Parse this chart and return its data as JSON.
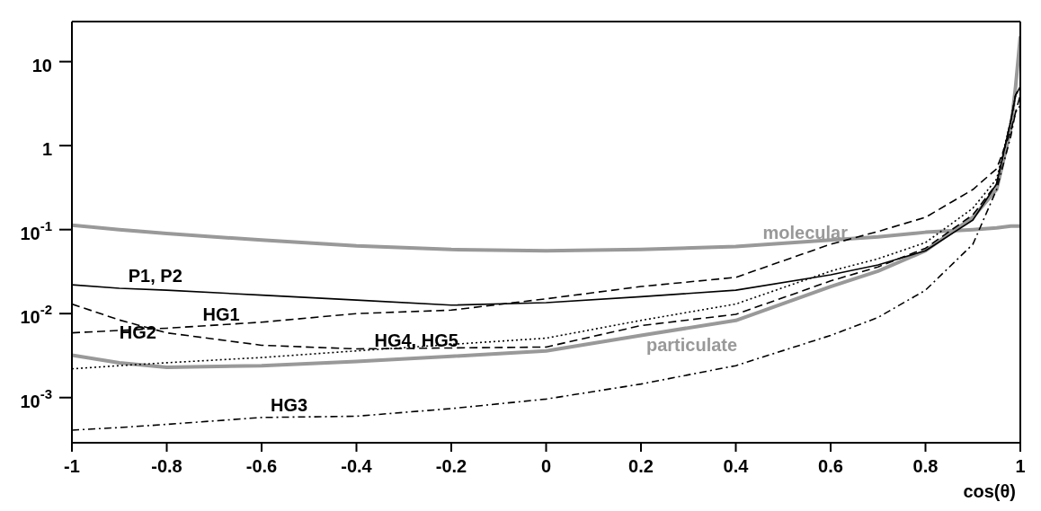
{
  "chart_data": {
    "type": "line",
    "xlabel": "cos(θ)",
    "x": [
      -1,
      -0.9,
      -0.8,
      -0.6,
      -0.4,
      -0.2,
      0,
      0.2,
      0.4,
      0.6,
      0.7,
      0.8,
      0.9,
      0.95,
      0.98,
      0.99,
      1
    ],
    "series": [
      {
        "name": "molecular",
        "color": "#999999",
        "line_style": "solid",
        "values": [
          0.113,
          0.1,
          0.09,
          0.075,
          0.064,
          0.058,
          0.056,
          0.058,
          0.063,
          0.075,
          0.082,
          0.093,
          0.1,
          0.105,
          0.11,
          0.11,
          0.11
        ]
      },
      {
        "name": "particulate",
        "color": "#999999",
        "line_style": "solid",
        "values": [
          0.0032,
          0.0026,
          0.0023,
          0.0024,
          0.0027,
          0.0031,
          0.0036,
          0.0055,
          0.0083,
          0.021,
          0.032,
          0.056,
          0.14,
          0.3,
          1.6,
          5,
          20
        ]
      },
      {
        "name": "P1, P2",
        "color": "#000000",
        "line_style": "solid",
        "values": [
          0.022,
          0.02,
          0.019,
          0.0166,
          0.0145,
          0.0126,
          0.0135,
          0.0159,
          0.019,
          0.029,
          0.038,
          0.056,
          0.13,
          0.35,
          2,
          4,
          5
        ]
      },
      {
        "name": "HG1",
        "color": "#000000",
        "line_style": "dashed",
        "values": [
          0.0059,
          0.0063,
          0.0067,
          0.0079,
          0.01,
          0.011,
          0.015,
          0.021,
          0.027,
          0.067,
          0.095,
          0.14,
          0.3,
          0.53,
          1.5,
          2.5,
          4
        ]
      },
      {
        "name": "HG2",
        "color": "#000000",
        "line_style": "dashed",
        "values": [
          0.013,
          0.0084,
          0.0059,
          0.0042,
          0.0038,
          0.0039,
          0.004,
          0.0072,
          0.0098,
          0.0245,
          0.036,
          0.06,
          0.15,
          0.35,
          2,
          4,
          5
        ]
      },
      {
        "name": "HG3",
        "color": "#000000",
        "line_style": "dashdot",
        "values": [
          0.00041,
          0.00044,
          0.00048,
          0.00058,
          0.0006,
          0.00074,
          0.00096,
          0.00145,
          0.0024,
          0.0055,
          0.009,
          0.019,
          0.067,
          0.3,
          1.3,
          2.5,
          3
        ]
      },
      {
        "name": "HG4, HG5",
        "color": "#000000",
        "line_style": "dotted",
        "values": [
          0.0022,
          0.0024,
          0.0026,
          0.003,
          0.0036,
          0.0043,
          0.0051,
          0.0083,
          0.013,
          0.032,
          0.045,
          0.07,
          0.18,
          0.4,
          2,
          4,
          5
        ]
      }
    ],
    "log": "y",
    "xlim": [
      -1,
      1
    ],
    "xticks": [
      -1,
      -0.8,
      -0.6,
      -0.4,
      -0.2,
      0,
      0.2,
      0.4,
      0.6,
      0.8,
      1
    ],
    "ylim": [
      0.00029,
      30
    ],
    "yticks": [
      {
        "value": 0.001,
        "label": "10$^{-3}$"
      },
      {
        "value": 0.01,
        "label": "10$^{-2}$"
      },
      {
        "value": 0.1,
        "label": "10$^{-1}$"
      },
      1,
      10
    ],
    "marker": "none"
  }
}
